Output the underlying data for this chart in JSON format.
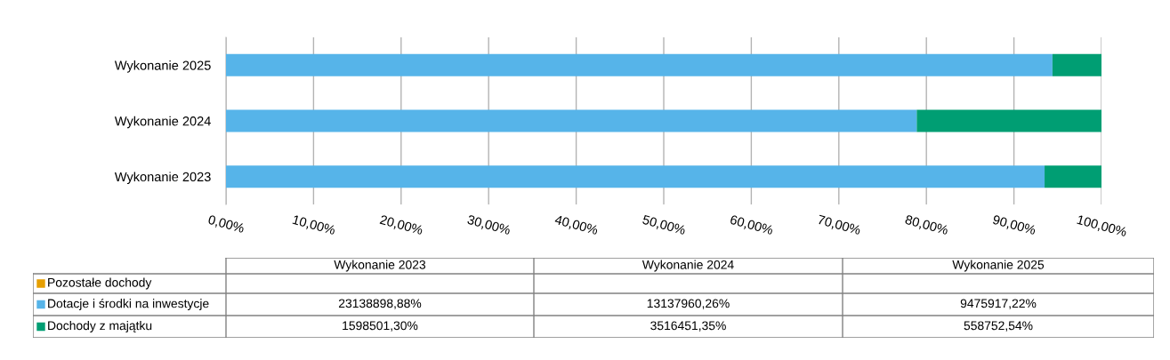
{
  "chart_data": {
    "type": "bar",
    "orientation": "horizontal",
    "stacked": true,
    "categories": [
      "Wykonanie 2025",
      "Wykonanie 2024",
      "Wykonanie 2023"
    ],
    "series": [
      {
        "name": "Pozostałe dochody",
        "color": "#e69f00",
        "values": [
          null,
          null,
          null
        ]
      },
      {
        "name": "Dotacje i środki na inwestycje",
        "color": "#56b4e9",
        "values": [
          94.4,
          78.9,
          93.5
        ]
      },
      {
        "name": "Dochody z majątku",
        "color": "#009e73",
        "values": [
          5.6,
          21.1,
          6.5
        ]
      }
    ],
    "annotations": [
      "23138898,88%",
      "13137960,26%",
      "9475917,22%",
      "1598501,30%",
      "3516451,35%",
      "558752,54%"
    ],
    "xlim": [
      0,
      100
    ],
    "xticks": [
      {
        "value": 0,
        "label": "0,00%"
      },
      {
        "value": 10,
        "label": "10,00%"
      },
      {
        "value": 20,
        "label": "20,00%"
      },
      {
        "value": 30,
        "label": "30,00%"
      },
      {
        "value": 40,
        "label": "40,00%"
      },
      {
        "value": 50,
        "label": "50,00%"
      },
      {
        "value": 60,
        "label": "60,00%"
      },
      {
        "value": 70,
        "label": "70,00%"
      },
      {
        "value": 80,
        "label": "80,00%"
      },
      {
        "value": 90,
        "label": "90,00%"
      },
      {
        "value": 100,
        "label": "100,00%"
      }
    ],
    "grid": "x",
    "legend": "bottom"
  }
}
